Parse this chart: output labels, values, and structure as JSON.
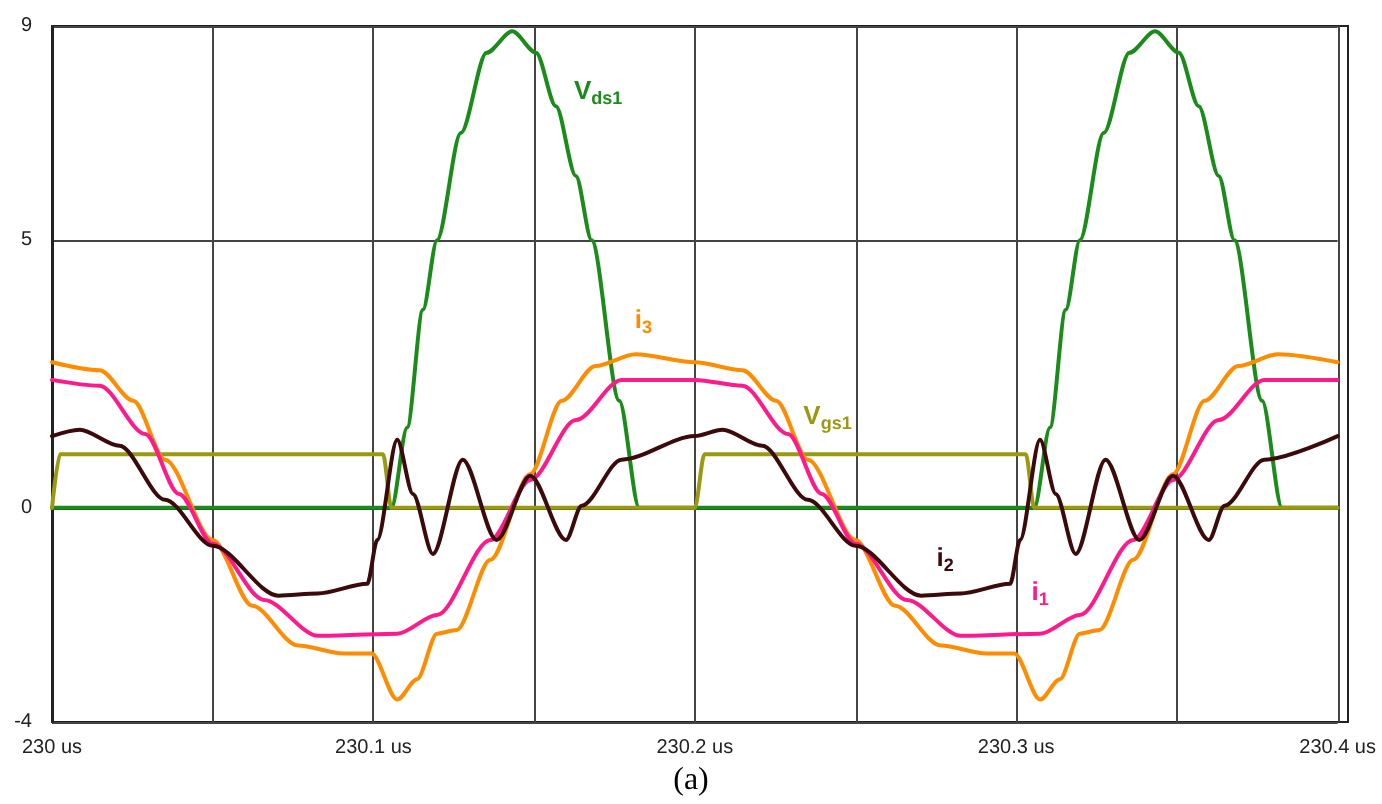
{
  "chart_data": {
    "type": "line",
    "marker": "none",
    "line_style": "solid",
    "grid": true,
    "legend": false,
    "xlim": [
      230,
      230.4
    ],
    "xticks": [
      {
        "value": 230,
        "label": "230 us"
      },
      {
        "value": 230.05,
        "label": null
      },
      {
        "value": 230.1,
        "label": "230.1 us"
      },
      {
        "value": 230.15,
        "label": null
      },
      {
        "value": 230.2,
        "label": "230.2 us"
      },
      {
        "value": 230.25,
        "label": null
      },
      {
        "value": 230.3,
        "label": "230.3 us"
      },
      {
        "value": 230.35,
        "label": null
      },
      {
        "value": 230.4,
        "label": "230.4 us"
      }
    ],
    "ylim": [
      -4,
      9
    ],
    "yticks": [
      -4,
      0,
      5,
      9
    ],
    "annotations": [
      "(a)"
    ],
    "series": [
      {
        "name": "V$_{ds1}$",
        "color": "#1a8c1a",
        "x": [
          230,
          230.1056,
          230.1105,
          230.1154,
          230.1198,
          230.1272,
          230.1352,
          230.1432,
          230.1506,
          230.1568,
          230.163,
          230.1679,
          230.1765,
          230.1827,
          230.3056,
          230.3105,
          230.3154,
          230.3198,
          230.3272,
          230.3352,
          230.3432,
          230.3506,
          230.3568,
          230.363,
          230.3679,
          230.3765,
          230.3827,
          230.4
        ],
        "values": [
          0,
          0,
          1.5,
          3.7,
          5,
          7,
          8.5,
          8.9,
          8.5,
          7.5,
          6.2,
          5,
          2,
          0,
          0,
          1.5,
          3.7,
          5,
          7,
          8.5,
          8.9,
          8.5,
          7.5,
          6.2,
          5,
          2,
          0,
          0
        ]
      },
      {
        "name": "V$_{gs1}$",
        "color": "#9a9a12",
        "x": [
          230,
          230.0025,
          230.103,
          230.1056,
          230.2,
          230.203,
          230.25,
          230.303,
          230.3056,
          230.4
        ],
        "values": [
          0,
          1,
          1,
          0,
          0,
          1,
          1,
          1,
          0,
          0
        ]
      },
      {
        "name": "i$_{3}$",
        "color": "#ff8c00",
        "x": [
          230,
          230.0148,
          230.0253,
          230.0352,
          230.05,
          230.0623,
          230.0765,
          230.0907,
          230.0994,
          230.1074,
          230.1136,
          230.1198,
          230.1259,
          230.1364,
          230.1488,
          230.1586,
          230.1691,
          230.1815,
          230.2,
          230.2148,
          230.2253,
          230.2352,
          230.25,
          230.2623,
          230.2765,
          230.2907,
          230.2994,
          230.3074,
          230.3136,
          230.3198,
          230.3259,
          230.3364,
          230.3488,
          230.3586,
          230.3691,
          230.3815,
          230.4
        ],
        "values": [
          2.72,
          2.57,
          2,
          0.9,
          -0.6,
          -1.83,
          -2.57,
          -2.72,
          -2.72,
          -3.58,
          -3.2,
          -2.35,
          -2.28,
          -0.97,
          0.63,
          2,
          2.65,
          2.87,
          2.72,
          2.57,
          2,
          0.9,
          -0.6,
          -1.83,
          -2.57,
          -2.72,
          -2.72,
          -3.58,
          -3.2,
          -2.35,
          -2.28,
          -0.97,
          0.63,
          2,
          2.65,
          2.87,
          2.72
        ]
      },
      {
        "name": "i$_{1}$",
        "color": "#ff1a8c",
        "x": [
          230,
          230.0148,
          230.029,
          230.0395,
          230.05,
          230.066,
          230.0827,
          230.1074,
          230.1198,
          230.1364,
          230.1488,
          230.163,
          230.1772,
          230.2,
          230.2148,
          230.229,
          230.2395,
          230.25,
          230.266,
          230.2827,
          230.3074,
          230.3198,
          230.3364,
          230.3488,
          230.363,
          230.3772,
          230.4
        ],
        "values": [
          2.39,
          2.28,
          1.38,
          0.26,
          -0.67,
          -1.72,
          -2.39,
          -2.35,
          -2,
          -0.6,
          0.52,
          1.64,
          2.39,
          2.39,
          2.28,
          1.38,
          0.26,
          -0.67,
          -1.72,
          -2.39,
          -2.35,
          -2,
          -0.6,
          0.52,
          1.64,
          2.39,
          2.39
        ]
      },
      {
        "name": "i$_{2}$",
        "color": "#3c0a0a",
        "x": [
          230,
          230.0086,
          230.021,
          230.0352,
          230.05,
          230.0704,
          230.0827,
          230.0981,
          230.1012,
          230.1074,
          230.1123,
          230.1185,
          230.1278,
          230.1383,
          230.1488,
          230.1599,
          230.1648,
          230.1772,
          230.2,
          230.2086,
          230.221,
          230.2352,
          230.25,
          230.2704,
          230.2827,
          230.2981,
          230.3012,
          230.3074,
          230.3123,
          230.3185,
          230.3278,
          230.3383,
          230.3488,
          230.3599,
          230.3648,
          230.3772,
          230.4
        ],
        "values": [
          1.34,
          1.46,
          1.16,
          0.15,
          -0.71,
          -1.64,
          -1.6,
          -1.42,
          -0.6,
          1.27,
          0.26,
          -0.86,
          0.9,
          -0.6,
          0.6,
          -0.6,
          0.04,
          0.9,
          1.34,
          1.46,
          1.16,
          0.15,
          -0.71,
          -1.64,
          -1.6,
          -1.42,
          -0.6,
          1.27,
          0.26,
          -0.86,
          0.9,
          -0.6,
          0.6,
          -0.6,
          0.04,
          0.9,
          1.34
        ]
      }
    ]
  }
}
